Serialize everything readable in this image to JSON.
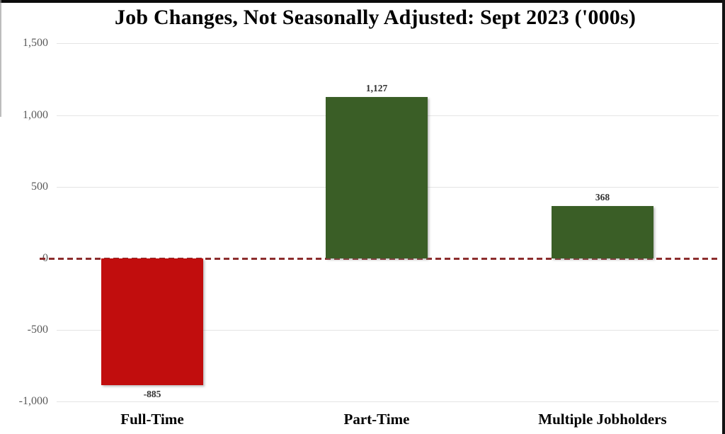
{
  "title": "Job Changes, Not Seasonally Adjusted: Sept 2023 ('000s)",
  "chart_data": {
    "type": "bar",
    "title": "Job Changes, Not Seasonally Adjusted: Sept 2023 ('000s)",
    "categories": [
      "Full-Time",
      "Part-Time",
      "Multiple Jobholders"
    ],
    "values": [
      -885,
      1127,
      368
    ],
    "value_labels": [
      "-885",
      "1,127",
      "368"
    ],
    "bar_colors": [
      "#C10D0D",
      "#3A5E26",
      "#3A5E26"
    ],
    "xlabel": "",
    "ylabel": "",
    "ylim": [
      -1000,
      1500
    ],
    "yticks": [
      1500,
      1000,
      500,
      0,
      -500,
      -1000
    ],
    "ytick_labels": [
      "1,500",
      "1,000",
      "500",
      "0",
      "-500",
      "-1,000"
    ],
    "grid": "horizontal-light",
    "legend": "none",
    "zero_line": {
      "style": "dashed",
      "color": "#8C2D2D"
    },
    "colors": {
      "negative_bar": "#C10D0D",
      "positive_bar": "#3A5E26",
      "gridline": "#E4E4E4",
      "tick_label": "#5A5A5A",
      "title": "#000000",
      "zero_dash": "#8C2D2D"
    }
  }
}
